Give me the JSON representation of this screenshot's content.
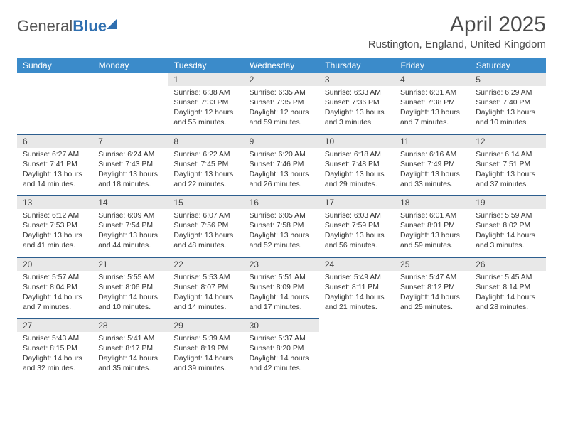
{
  "brand": {
    "word1": "General",
    "word2": "Blue"
  },
  "title": "April 2025",
  "location": "Rustington, England, United Kingdom",
  "colors": {
    "header_bg": "#3b8bca",
    "header_text": "#ffffff",
    "daynum_bg": "#e8e8e8",
    "rule": "#2d5e8e",
    "text": "#333333",
    "brand_blue": "#2f6fb0"
  },
  "weekdays": [
    "Sunday",
    "Monday",
    "Tuesday",
    "Wednesday",
    "Thursday",
    "Friday",
    "Saturday"
  ],
  "weeks": [
    [
      null,
      null,
      {
        "n": "1",
        "sr": "Sunrise: 6:38 AM",
        "ss": "Sunset: 7:33 PM",
        "dl": "Daylight: 12 hours and 55 minutes."
      },
      {
        "n": "2",
        "sr": "Sunrise: 6:35 AM",
        "ss": "Sunset: 7:35 PM",
        "dl": "Daylight: 12 hours and 59 minutes."
      },
      {
        "n": "3",
        "sr": "Sunrise: 6:33 AM",
        "ss": "Sunset: 7:36 PM",
        "dl": "Daylight: 13 hours and 3 minutes."
      },
      {
        "n": "4",
        "sr": "Sunrise: 6:31 AM",
        "ss": "Sunset: 7:38 PM",
        "dl": "Daylight: 13 hours and 7 minutes."
      },
      {
        "n": "5",
        "sr": "Sunrise: 6:29 AM",
        "ss": "Sunset: 7:40 PM",
        "dl": "Daylight: 13 hours and 10 minutes."
      }
    ],
    [
      {
        "n": "6",
        "sr": "Sunrise: 6:27 AM",
        "ss": "Sunset: 7:41 PM",
        "dl": "Daylight: 13 hours and 14 minutes."
      },
      {
        "n": "7",
        "sr": "Sunrise: 6:24 AM",
        "ss": "Sunset: 7:43 PM",
        "dl": "Daylight: 13 hours and 18 minutes."
      },
      {
        "n": "8",
        "sr": "Sunrise: 6:22 AM",
        "ss": "Sunset: 7:45 PM",
        "dl": "Daylight: 13 hours and 22 minutes."
      },
      {
        "n": "9",
        "sr": "Sunrise: 6:20 AM",
        "ss": "Sunset: 7:46 PM",
        "dl": "Daylight: 13 hours and 26 minutes."
      },
      {
        "n": "10",
        "sr": "Sunrise: 6:18 AM",
        "ss": "Sunset: 7:48 PM",
        "dl": "Daylight: 13 hours and 29 minutes."
      },
      {
        "n": "11",
        "sr": "Sunrise: 6:16 AM",
        "ss": "Sunset: 7:49 PM",
        "dl": "Daylight: 13 hours and 33 minutes."
      },
      {
        "n": "12",
        "sr": "Sunrise: 6:14 AM",
        "ss": "Sunset: 7:51 PM",
        "dl": "Daylight: 13 hours and 37 minutes."
      }
    ],
    [
      {
        "n": "13",
        "sr": "Sunrise: 6:12 AM",
        "ss": "Sunset: 7:53 PM",
        "dl": "Daylight: 13 hours and 41 minutes."
      },
      {
        "n": "14",
        "sr": "Sunrise: 6:09 AM",
        "ss": "Sunset: 7:54 PM",
        "dl": "Daylight: 13 hours and 44 minutes."
      },
      {
        "n": "15",
        "sr": "Sunrise: 6:07 AM",
        "ss": "Sunset: 7:56 PM",
        "dl": "Daylight: 13 hours and 48 minutes."
      },
      {
        "n": "16",
        "sr": "Sunrise: 6:05 AM",
        "ss": "Sunset: 7:58 PM",
        "dl": "Daylight: 13 hours and 52 minutes."
      },
      {
        "n": "17",
        "sr": "Sunrise: 6:03 AM",
        "ss": "Sunset: 7:59 PM",
        "dl": "Daylight: 13 hours and 56 minutes."
      },
      {
        "n": "18",
        "sr": "Sunrise: 6:01 AM",
        "ss": "Sunset: 8:01 PM",
        "dl": "Daylight: 13 hours and 59 minutes."
      },
      {
        "n": "19",
        "sr": "Sunrise: 5:59 AM",
        "ss": "Sunset: 8:02 PM",
        "dl": "Daylight: 14 hours and 3 minutes."
      }
    ],
    [
      {
        "n": "20",
        "sr": "Sunrise: 5:57 AM",
        "ss": "Sunset: 8:04 PM",
        "dl": "Daylight: 14 hours and 7 minutes."
      },
      {
        "n": "21",
        "sr": "Sunrise: 5:55 AM",
        "ss": "Sunset: 8:06 PM",
        "dl": "Daylight: 14 hours and 10 minutes."
      },
      {
        "n": "22",
        "sr": "Sunrise: 5:53 AM",
        "ss": "Sunset: 8:07 PM",
        "dl": "Daylight: 14 hours and 14 minutes."
      },
      {
        "n": "23",
        "sr": "Sunrise: 5:51 AM",
        "ss": "Sunset: 8:09 PM",
        "dl": "Daylight: 14 hours and 17 minutes."
      },
      {
        "n": "24",
        "sr": "Sunrise: 5:49 AM",
        "ss": "Sunset: 8:11 PM",
        "dl": "Daylight: 14 hours and 21 minutes."
      },
      {
        "n": "25",
        "sr": "Sunrise: 5:47 AM",
        "ss": "Sunset: 8:12 PM",
        "dl": "Daylight: 14 hours and 25 minutes."
      },
      {
        "n": "26",
        "sr": "Sunrise: 5:45 AM",
        "ss": "Sunset: 8:14 PM",
        "dl": "Daylight: 14 hours and 28 minutes."
      }
    ],
    [
      {
        "n": "27",
        "sr": "Sunrise: 5:43 AM",
        "ss": "Sunset: 8:15 PM",
        "dl": "Daylight: 14 hours and 32 minutes."
      },
      {
        "n": "28",
        "sr": "Sunrise: 5:41 AM",
        "ss": "Sunset: 8:17 PM",
        "dl": "Daylight: 14 hours and 35 minutes."
      },
      {
        "n": "29",
        "sr": "Sunrise: 5:39 AM",
        "ss": "Sunset: 8:19 PM",
        "dl": "Daylight: 14 hours and 39 minutes."
      },
      {
        "n": "30",
        "sr": "Sunrise: 5:37 AM",
        "ss": "Sunset: 8:20 PM",
        "dl": "Daylight: 14 hours and 42 minutes."
      },
      null,
      null,
      null
    ]
  ]
}
